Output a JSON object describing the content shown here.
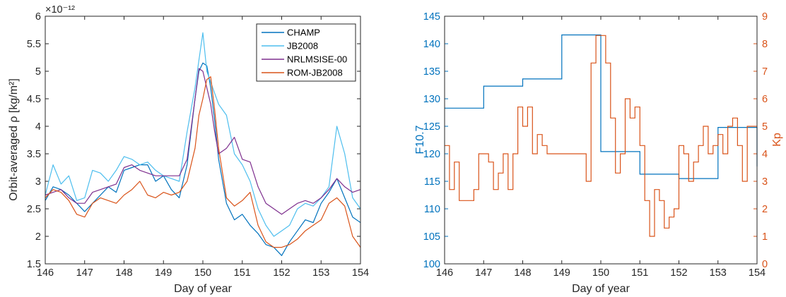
{
  "chart_data": [
    {
      "type": "line",
      "xlabel": "Day of year",
      "ylabel": "Orbit-averaged ρ [kg/m²]",
      "yexponent": "×10⁻¹²",
      "xlim": [
        146,
        154
      ],
      "ylim": [
        1.5,
        6
      ],
      "xticks": [
        "146",
        "147",
        "148",
        "149",
        "150",
        "151",
        "152",
        "153",
        "154"
      ],
      "yticks": [
        "1.5",
        "2",
        "2.5",
        "3",
        "3.5",
        "4",
        "4.5",
        "5",
        "5.5",
        "6"
      ],
      "grid": false,
      "legend_position": "top-right",
      "series": [
        {
          "name": "CHAMP",
          "color": "#0072BD",
          "x": [
            146,
            146.2,
            146.4,
            146.6,
            146.8,
            147,
            147.2,
            147.4,
            147.6,
            147.8,
            148,
            148.2,
            148.4,
            148.6,
            148.8,
            149,
            149.2,
            149.4,
            149.6,
            149.8,
            149.9,
            150,
            150.1,
            150.2,
            150.3,
            150.4,
            150.6,
            150.8,
            151,
            151.2,
            151.4,
            151.6,
            151.8,
            152,
            152.2,
            152.4,
            152.6,
            152.8,
            153,
            153.2,
            153.4,
            153.6,
            153.8,
            154
          ],
          "y": [
            2.65,
            2.9,
            2.85,
            2.75,
            2.6,
            2.45,
            2.6,
            2.75,
            2.9,
            2.8,
            3.2,
            3.25,
            3.3,
            3.3,
            3.0,
            3.1,
            2.85,
            2.7,
            3.3,
            4.5,
            5.0,
            5.15,
            5.1,
            4.7,
            4.1,
            3.4,
            2.6,
            2.3,
            2.4,
            2.2,
            2.05,
            1.85,
            1.8,
            1.65,
            1.9,
            2.1,
            2.3,
            2.25,
            2.6,
            2.8,
            3.05,
            2.7,
            2.35,
            2.25
          ]
        },
        {
          "name": "JB2008",
          "color": "#4DBEEE",
          "x": [
            146,
            146.2,
            146.4,
            146.6,
            146.8,
            147,
            147.2,
            147.4,
            147.6,
            147.8,
            148,
            148.2,
            148.4,
            148.6,
            148.8,
            149,
            149.2,
            149.4,
            149.6,
            149.8,
            149.9,
            150,
            150.1,
            150.2,
            150.3,
            150.4,
            150.6,
            150.8,
            151,
            151.2,
            151.4,
            151.6,
            151.8,
            152,
            152.2,
            152.4,
            152.6,
            152.8,
            153,
            153.2,
            153.4,
            153.6,
            153.8,
            154
          ],
          "y": [
            2.75,
            3.3,
            2.95,
            3.1,
            2.65,
            2.7,
            3.2,
            3.15,
            3.0,
            3.2,
            3.45,
            3.4,
            3.3,
            3.35,
            3.2,
            3.1,
            3.05,
            3.0,
            3.9,
            4.7,
            5.2,
            5.7,
            5.0,
            4.8,
            4.6,
            4.4,
            4.2,
            3.5,
            3.3,
            3.0,
            2.5,
            2.2,
            2.0,
            2.1,
            2.2,
            2.5,
            2.6,
            2.55,
            2.7,
            2.9,
            4.0,
            3.5,
            2.7,
            2.5
          ]
        },
        {
          "name": "NRLMSISE-00",
          "color": "#7E2F8E",
          "x": [
            146,
            146.2,
            146.4,
            146.6,
            146.8,
            147,
            147.2,
            147.4,
            147.6,
            147.8,
            148,
            148.2,
            148.4,
            148.6,
            148.8,
            149,
            149.2,
            149.4,
            149.6,
            149.8,
            149.9,
            150,
            150.1,
            150.2,
            150.3,
            150.4,
            150.6,
            150.8,
            151,
            151.2,
            151.4,
            151.6,
            151.8,
            152,
            152.2,
            152.4,
            152.6,
            152.8,
            153,
            153.2,
            153.4,
            153.6,
            153.8,
            154
          ],
          "y": [
            2.75,
            2.8,
            2.85,
            2.7,
            2.6,
            2.6,
            2.8,
            2.85,
            2.9,
            2.95,
            3.25,
            3.3,
            3.2,
            3.15,
            3.1,
            3.1,
            3.1,
            3.1,
            3.4,
            4.5,
            5.05,
            5.0,
            4.7,
            4.4,
            3.9,
            3.5,
            3.6,
            3.8,
            3.4,
            3.35,
            2.9,
            2.6,
            2.5,
            2.4,
            2.5,
            2.6,
            2.65,
            2.6,
            2.7,
            2.85,
            3.05,
            2.9,
            2.8,
            2.85
          ]
        },
        {
          "name": "ROM-JB2008",
          "color": "#D95319",
          "x": [
            146,
            146.2,
            146.4,
            146.6,
            146.8,
            147,
            147.2,
            147.4,
            147.6,
            147.8,
            148,
            148.2,
            148.4,
            148.6,
            148.8,
            149,
            149.2,
            149.4,
            149.6,
            149.8,
            149.9,
            150,
            150.1,
            150.2,
            150.3,
            150.4,
            150.6,
            150.8,
            151,
            151.2,
            151.4,
            151.6,
            151.8,
            152,
            152.2,
            152.4,
            152.6,
            152.8,
            153,
            153.2,
            153.4,
            153.6,
            153.8,
            154
          ],
          "y": [
            2.7,
            2.85,
            2.8,
            2.65,
            2.4,
            2.35,
            2.6,
            2.7,
            2.65,
            2.6,
            2.75,
            2.85,
            3.0,
            2.75,
            2.7,
            2.8,
            2.75,
            2.8,
            3.0,
            3.6,
            4.2,
            4.5,
            4.85,
            4.9,
            4.3,
            3.6,
            2.7,
            2.55,
            2.65,
            2.8,
            2.2,
            1.9,
            1.8,
            1.8,
            1.85,
            1.95,
            2.1,
            2.2,
            2.3,
            2.6,
            2.7,
            2.55,
            2.0,
            1.8
          ]
        }
      ]
    },
    {
      "type": "line",
      "xlabel": "Day of year",
      "ylabel": "F10.7",
      "ylabel_right": "Kp",
      "xlim": [
        146,
        154
      ],
      "ylim": [
        100,
        145
      ],
      "ylim_right": [
        0,
        9
      ],
      "xticks": [
        "146",
        "147",
        "148",
        "149",
        "150",
        "151",
        "152",
        "153",
        "154"
      ],
      "yticks": [
        "100",
        "105",
        "110",
        "115",
        "120",
        "125",
        "130",
        "135",
        "140",
        "145"
      ],
      "yticks_right": [
        "0",
        "1",
        "2",
        "3",
        "4",
        "5",
        "6",
        "7",
        "8",
        "9"
      ],
      "grid": false,
      "series": [
        {
          "name": "F10.7",
          "color": "#0072BD",
          "step": true,
          "x": [
            146,
            147,
            147,
            148,
            148,
            149,
            149,
            150,
            150,
            151,
            151,
            152,
            152,
            153,
            153,
            154,
            154
          ],
          "y": [
            128.3,
            128.3,
            132.3,
            132.3,
            133.6,
            133.6,
            141.6,
            141.6,
            120.4,
            120.4,
            116.3,
            116.3,
            115.5,
            115.5,
            124.8,
            124.8,
            117.7
          ]
        },
        {
          "name": "Kp",
          "color": "#D95319",
          "step": true,
          "x": [
            146,
            146.125,
            146.25,
            146.375,
            146.5,
            146.625,
            146.75,
            146.875,
            147,
            147.125,
            147.25,
            147.375,
            147.5,
            147.625,
            147.75,
            147.875,
            148,
            148.125,
            148.25,
            148.375,
            148.5,
            148.625,
            148.75,
            148.875,
            149,
            149.125,
            149.25,
            149.375,
            149.5,
            149.625,
            149.75,
            149.875,
            150,
            150.125,
            150.25,
            150.375,
            150.5,
            150.625,
            150.75,
            150.875,
            151,
            151.125,
            151.25,
            151.375,
            151.5,
            151.625,
            151.75,
            151.875,
            152,
            152.125,
            152.25,
            152.375,
            152.5,
            152.625,
            152.75,
            152.875,
            153,
            153.125,
            153.25,
            153.375,
            153.5,
            153.625,
            153.75,
            153.875
          ],
          "y": [
            4.3,
            2.7,
            3.7,
            2.3,
            2.3,
            2.3,
            2.7,
            4.0,
            4.0,
            3.7,
            2.7,
            3.3,
            4.0,
            2.7,
            4.0,
            5.7,
            5.0,
            5.7,
            4.0,
            4.7,
            4.3,
            4.0,
            4.0,
            4.0,
            4.0,
            4.0,
            4.0,
            4.0,
            4.0,
            3.0,
            7.3,
            8.3,
            8.3,
            7.3,
            5.3,
            3.3,
            4.0,
            6.0,
            5.3,
            5.7,
            4.3,
            2.3,
            1.0,
            2.7,
            2.3,
            1.3,
            1.7,
            2.0,
            4.3,
            4.0,
            3.0,
            3.7,
            4.3,
            5.0,
            4.0,
            4.3,
            4.7,
            4.0,
            5.0,
            5.3,
            4.3,
            3.0,
            5.0,
            5.0
          ]
        }
      ]
    }
  ]
}
